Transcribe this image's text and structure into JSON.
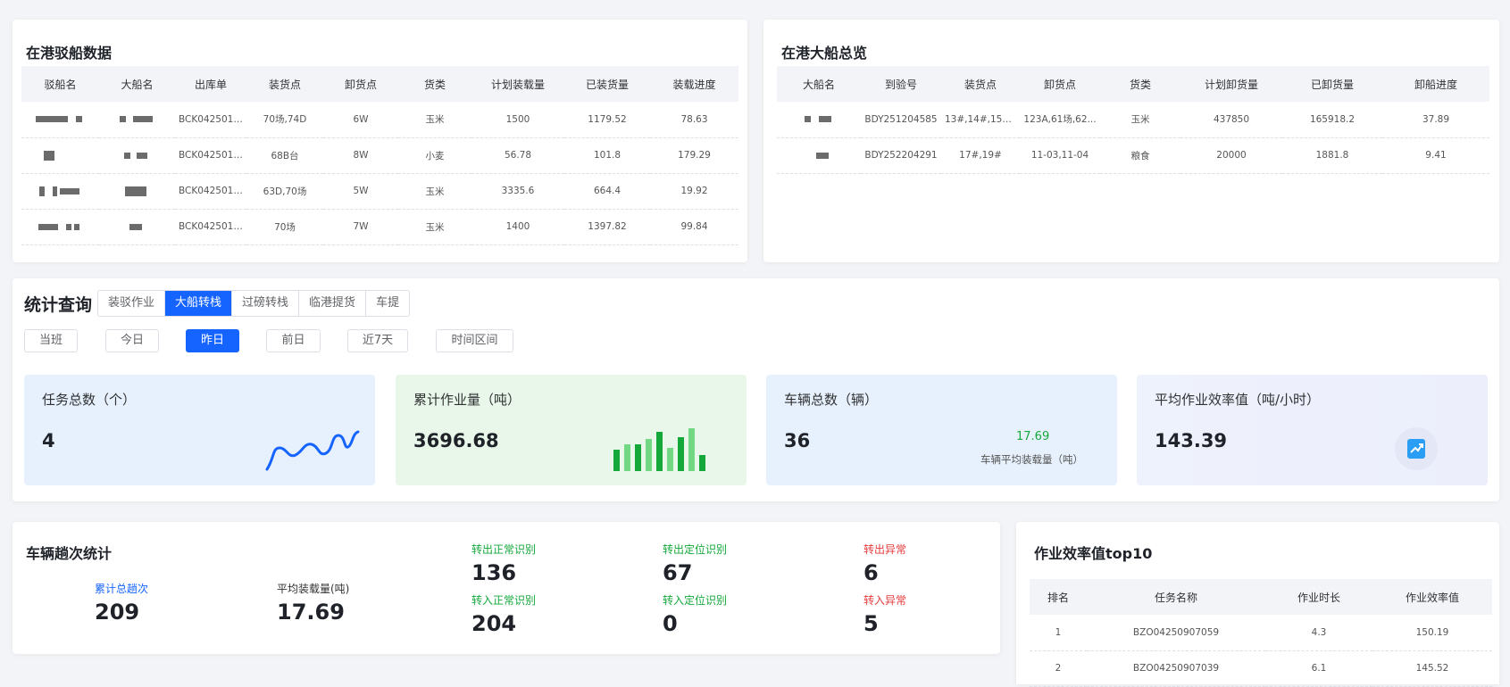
{
  "barge_panel": {
    "title": "在港驳船数据",
    "columns": [
      "驳船名",
      "大船名",
      "出库单",
      "装货点",
      "卸货点",
      "货类",
      "计划装载量",
      "已装货量",
      "装载进度"
    ],
    "rows": [
      {
        "order": "BCK0425015...",
        "load": "70场,74D",
        "unload": "6W",
        "cargo": "玉米",
        "plan": "1500",
        "loaded": "1179.52",
        "progress": "78.63"
      },
      {
        "order": "BCK0425011...",
        "load": "68B台",
        "unload": "8W",
        "cargo": "小麦",
        "plan": "56.78",
        "loaded": "101.8",
        "progress": "179.29"
      },
      {
        "order": "BCK0425015...",
        "load": "63D,70场",
        "unload": "5W",
        "cargo": "玉米",
        "plan": "3335.6",
        "loaded": "664.4",
        "progress": "19.92"
      },
      {
        "order": "BCK0425015...",
        "load": "70场",
        "unload": "7W",
        "cargo": "玉米",
        "plan": "1400",
        "loaded": "1397.82",
        "progress": "99.84"
      }
    ]
  },
  "ship_panel": {
    "title": "在港大船总览",
    "columns": [
      "大船名",
      "到验号",
      "装货点",
      "卸货点",
      "货类",
      "计划卸货量",
      "已卸货量",
      "卸船进度"
    ],
    "rows": [
      {
        "arrival": "BDY251204585",
        "load": "13#,14#,15#,1...",
        "unload": "123A,61场,62...",
        "cargo": "玉米",
        "plan": "437850",
        "unloaded": "165918.2",
        "progress": "37.89"
      },
      {
        "arrival": "BDY252204291",
        "load": "17#,19#",
        "unload": "11-03,11-04",
        "cargo": "粮食",
        "plan": "20000",
        "unloaded": "1881.8",
        "progress": "9.41"
      }
    ]
  },
  "stats": {
    "title": "统计查询",
    "tabs": [
      "装驳作业",
      "大船转栈",
      "过磅转栈",
      "临港提货",
      "车提"
    ],
    "active_tab": 1,
    "ranges": [
      "当班",
      "今日",
      "昨日",
      "前日",
      "近7天",
      "时间区间"
    ],
    "active_range": 2
  },
  "cards": {
    "tasks": {
      "label": "任务总数（个）",
      "value": "4"
    },
    "volume": {
      "label": "累计作业量（吨）",
      "value": "3696.68"
    },
    "vehicles": {
      "label": "车辆总数（辆）",
      "value": "36",
      "sub_value": "17.69",
      "sub_label": "车辆平均装载量（吨）"
    },
    "efficiency": {
      "label": "平均作业效率值（吨/小时）",
      "value": "143.39"
    }
  },
  "trip_panel": {
    "title": "车辆趟次统计",
    "total_label": "累计总趟次",
    "total_value": "209",
    "avg_label": "平均装载量(吨)",
    "avg_value": "17.69",
    "out_normal_label": "转出正常识别",
    "out_normal_value": "136",
    "out_locate_label": "转出定位识别",
    "out_locate_value": "67",
    "out_abnormal_label": "转出异常",
    "out_abnormal_value": "6",
    "in_normal_label": "转入正常识别",
    "in_normal_value": "204",
    "in_locate_label": "转入定位识别",
    "in_locate_value": "0",
    "in_abnormal_label": "转入异常",
    "in_abnormal_value": "5"
  },
  "top10_panel": {
    "title": "作业效率值top10",
    "columns": [
      "排名",
      "任务名称",
      "作业时长",
      "作业效率值"
    ],
    "rows": [
      {
        "rank": "1",
        "name": "BZO04250907059",
        "duration": "4.3",
        "eff": "150.19"
      },
      {
        "rank": "2",
        "name": "BZO04250907039",
        "duration": "6.1",
        "eff": "145.52"
      }
    ]
  },
  "colors": {
    "accent": "#1664ff",
    "green": "#14a83b",
    "red": "#e33b3b"
  }
}
